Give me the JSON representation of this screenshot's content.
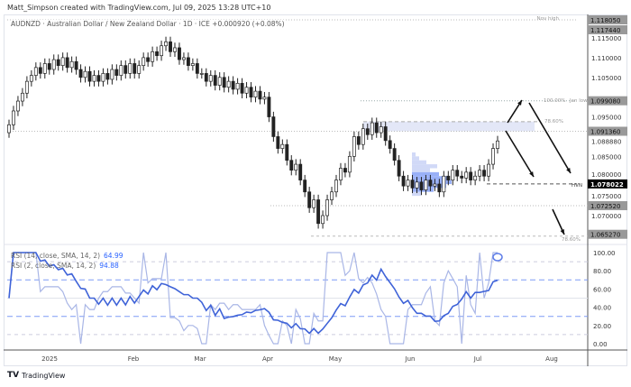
{
  "credit": "Matt_Simpson created with TradingView.com, Jul 09, 2025 13:28 UTC+10",
  "symbol": "AUDNZD · Australian Dollar / New Zealand Dollar · 1D · ICE  +0.000920 (+0.08%)",
  "rsi": [
    {
      "label": "RSI (14, close, SMA, 14, 2)",
      "value": "64.99"
    },
    {
      "label": "RSI (2, close, SMA, 14, 2)",
      "value": "94.88"
    }
  ],
  "brand": "TradingView",
  "chart_data": {
    "type": "candlestick",
    "title": "AUDNZD 1D",
    "ylim": [
      1.0625,
      1.1195
    ],
    "rsi_ylim": [
      0,
      100
    ],
    "price_ticks": [
      "1.115000",
      "1.110000",
      "1.105000",
      "1.095000",
      "1.088880",
      "1.085000",
      "1.080000",
      "1.075000",
      "1.070000"
    ],
    "rsi_ticks": [
      "100.00",
      "80.00",
      "60.00",
      "40.00",
      "20.00",
      "0.00"
    ],
    "time_ticks": [
      "2025",
      "Feb",
      "Mar",
      "Apr",
      "May",
      "Jun",
      "Jul",
      "Aug"
    ],
    "price_labels": [
      {
        "price": 1.11805,
        "text": "1.118050",
        "style": "grey"
      },
      {
        "price": 1.11744,
        "text": "1.117440",
        "style": "grey"
      },
      {
        "price": 1.09908,
        "text": "1.099080",
        "style": "grey"
      },
      {
        "price": 1.09136,
        "text": "1.091360",
        "style": "grey"
      },
      {
        "price": 1.078022,
        "text": "1.078022",
        "style": "black"
      },
      {
        "price": 1.07252,
        "text": "1.072520",
        "style": "grey"
      },
      {
        "price": 1.06527,
        "text": "1.065270",
        "style": "grey"
      }
    ],
    "annotations": [
      {
        "price": 1.11805,
        "text": "Nov high"
      },
      {
        "price": 1.09908,
        "text": "Jan low"
      },
      {
        "price": 1.09908,
        "text": "100.00%"
      },
      {
        "price": 1.0938,
        "text": "78.60%"
      },
      {
        "price": 1.078022,
        "text": "HVN"
      },
      {
        "price": 1.0648,
        "text": "78.60%"
      }
    ],
    "closes": [
      1.093,
      1.0965,
      1.099,
      1.101,
      1.104,
      1.1055,
      1.1075,
      1.106,
      1.1085,
      1.107,
      1.1095,
      1.108,
      1.11,
      1.1075,
      1.109,
      1.107,
      1.105,
      1.1065,
      1.104,
      1.1055,
      1.104,
      1.106,
      1.1045,
      1.107,
      1.1055,
      1.108,
      1.106,
      1.1085,
      1.106,
      1.108,
      1.11,
      1.109,
      1.1115,
      1.1105,
      1.113,
      1.114,
      1.1115,
      1.1125,
      1.1095,
      1.11,
      1.108,
      1.1085,
      1.106,
      1.106,
      1.104,
      1.1055,
      1.103,
      1.105,
      1.1025,
      1.104,
      1.102,
      1.1035,
      1.101,
      1.1025,
      1.1,
      1.1015,
      1.0995,
      1.1,
      1.095,
      1.09,
      1.087,
      1.088,
      1.084,
      1.0815,
      1.083,
      1.079,
      1.076,
      1.072,
      1.074,
      1.068,
      1.07,
      1.074,
      1.076,
      1.079,
      1.082,
      1.081,
      1.085,
      1.09,
      1.088,
      1.092,
      1.0905,
      1.0935,
      1.091,
      1.0925,
      1.089,
      1.087,
      1.084,
      1.08,
      1.0775,
      1.079,
      1.077,
      1.0785,
      1.0765,
      1.079,
      1.0775,
      1.078,
      1.076,
      1.08,
      1.079,
      1.0815,
      1.08,
      1.0795,
      1.081,
      1.079,
      1.08,
      1.0815,
      1.08,
      1.083,
      1.087,
      1.0889
    ]
  }
}
